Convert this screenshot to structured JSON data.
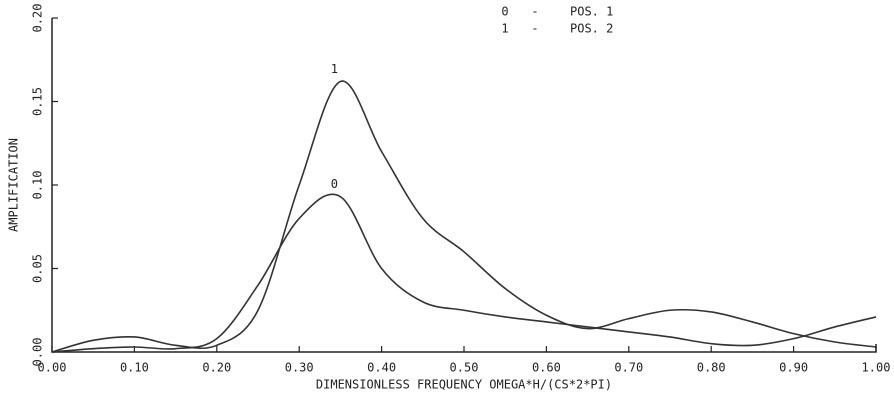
{
  "chart_data": {
    "type": "line",
    "xlabel": "DIMENSIONLESS FREQUENCY OMEGA*H/(CS*2*PI)",
    "ylabel": "AMPLIFICATION",
    "legend_separator": "-",
    "x": [
      0,
      0.05,
      0.1,
      0.15,
      0.2,
      0.25,
      0.3,
      0.35,
      0.4,
      0.45,
      0.5,
      0.55,
      0.6,
      0.65,
      0.7,
      0.75,
      0.8,
      0.85,
      0.9,
      0.95,
      1.0
    ],
    "series": [
      {
        "label": "0",
        "name": "POS. 1",
        "color": "#333333",
        "values": [
          0,
          0.002,
          0.003,
          0.002,
          0.008,
          0.04,
          0.08,
          0.093,
          0.05,
          0.03,
          0.025,
          0.021,
          0.018,
          0.015,
          0.012,
          0.009,
          0.005,
          0.004,
          0.008,
          0.015,
          0.021
        ]
      },
      {
        "label": "1",
        "name": "POS. 2",
        "color": "#333333",
        "values": [
          0,
          0.007,
          0.009,
          0.004,
          0.004,
          0.025,
          0.1,
          0.162,
          0.12,
          0.08,
          0.06,
          0.038,
          0.022,
          0.014,
          0.02,
          0.025,
          0.024,
          0.018,
          0.011,
          0.006,
          0.003
        ]
      }
    ],
    "xlim": [
      0,
      1.0
    ],
    "xticks": [
      {
        "value": 0,
        "label": "0.00"
      },
      {
        "value": 0.1,
        "label": "0.10"
      },
      {
        "value": 0.2,
        "label": "0.20"
      },
      {
        "value": 0.3,
        "label": "0.30"
      },
      {
        "value": 0.4,
        "label": "0.40"
      },
      {
        "value": 0.5,
        "label": "0.50"
      },
      {
        "value": 0.6,
        "label": "0.60"
      },
      {
        "value": 0.7,
        "label": "0.70"
      },
      {
        "value": 0.8,
        "label": "0.80"
      },
      {
        "value": 0.9,
        "label": "0.90"
      },
      {
        "value": 1.0,
        "label": "1.00"
      }
    ],
    "ylim": [
      0,
      0.2
    ],
    "yticks": [
      {
        "value": 0,
        "label": "0.00"
      },
      {
        "value": 0.05,
        "label": "0.05"
      },
      {
        "value": 0.1,
        "label": "0.10"
      },
      {
        "value": 0.15,
        "label": "0.15"
      },
      {
        "value": 0.2,
        "label": "0.20"
      }
    ]
  }
}
